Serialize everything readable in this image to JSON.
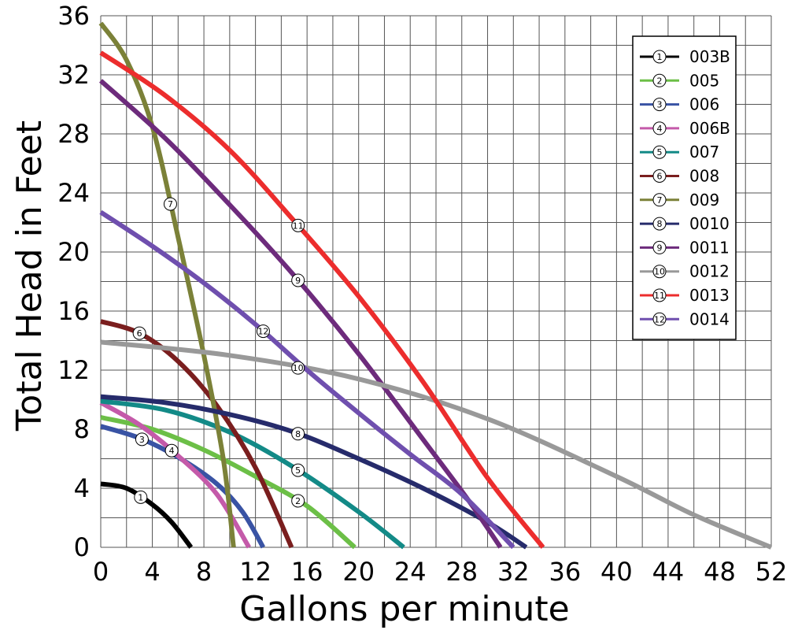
{
  "chart_data": {
    "type": "line",
    "title": "",
    "xlabel": "Gallons per minute",
    "ylabel": "Total Head in Feet",
    "xlim": [
      0,
      52
    ],
    "ylim": [
      0,
      36
    ],
    "x_ticks": [
      "0",
      "4",
      "8",
      "12",
      "16",
      "20",
      "24",
      "28",
      "32",
      "36",
      "40",
      "44",
      "48",
      "52"
    ],
    "y_ticks": [
      "0",
      "4",
      "8",
      "12",
      "16",
      "20",
      "24",
      "28",
      "32",
      "36"
    ],
    "grid": true,
    "legend_position": "top-right",
    "series": [
      {
        "id": "1",
        "name": "003B",
        "color": "#000000",
        "points": [
          [
            0,
            4.3
          ],
          [
            2,
            4.0
          ],
          [
            4,
            2.9
          ],
          [
            5.5,
            1.7
          ],
          [
            7,
            0
          ]
        ],
        "marker_x": 3.1
      },
      {
        "id": "2",
        "name": "005",
        "color": "#6cbf47",
        "points": [
          [
            0,
            8.8
          ],
          [
            4,
            8.0
          ],
          [
            8,
            6.6
          ],
          [
            12,
            4.8
          ],
          [
            16,
            2.8
          ],
          [
            19.7,
            0
          ]
        ],
        "marker_x": 15.3
      },
      {
        "id": "3",
        "name": "006",
        "color": "#3953a4",
        "points": [
          [
            0,
            8.2
          ],
          [
            3,
            7.4
          ],
          [
            6,
            6.1
          ],
          [
            9,
            4.3
          ],
          [
            11,
            2.4
          ],
          [
            12.6,
            0
          ]
        ],
        "marker_x": 3.2
      },
      {
        "id": "4",
        "name": "006B",
        "color": "#c45aa9",
        "points": [
          [
            0,
            9.8
          ],
          [
            3,
            8.3
          ],
          [
            6,
            6.2
          ],
          [
            9,
            3.6
          ],
          [
            11.5,
            0
          ]
        ],
        "marker_x": 5.5
      },
      {
        "id": "5",
        "name": "007",
        "color": "#138a87",
        "points": [
          [
            0,
            9.9
          ],
          [
            5,
            9.3
          ],
          [
            10,
            7.8
          ],
          [
            15,
            5.4
          ],
          [
            20,
            2.4
          ],
          [
            23.5,
            0
          ]
        ],
        "marker_x": 15.3
      },
      {
        "id": "6",
        "name": "008",
        "color": "#7a1e1e",
        "points": [
          [
            0,
            15.3
          ],
          [
            3,
            14.5
          ],
          [
            6,
            12.6
          ],
          [
            9,
            9.6
          ],
          [
            12,
            5.4
          ],
          [
            14.8,
            0
          ]
        ],
        "marker_x": 3.0
      },
      {
        "id": "7",
        "name": "009",
        "color": "#7b8138",
        "points": [
          [
            0,
            35.5
          ],
          [
            2,
            33.0
          ],
          [
            4,
            28.5
          ],
          [
            6,
            21.0
          ],
          [
            8,
            13.0
          ],
          [
            9.5,
            6.0
          ],
          [
            10.3,
            0
          ]
        ],
        "marker_x": 5.4
      },
      {
        "id": "8",
        "name": "0010",
        "color": "#262b6b",
        "points": [
          [
            0,
            10.2
          ],
          [
            5,
            9.8
          ],
          [
            10,
            9.0
          ],
          [
            15,
            7.8
          ],
          [
            20,
            6.0
          ],
          [
            25,
            4.0
          ],
          [
            30,
            1.7
          ],
          [
            33,
            0
          ]
        ],
        "marker_x": 15.3
      },
      {
        "id": "9",
        "name": "0011",
        "color": "#6d2b7c",
        "points": [
          [
            0,
            31.6
          ],
          [
            5,
            27.7
          ],
          [
            10,
            23.2
          ],
          [
            15,
            18.4
          ],
          [
            20,
            13.1
          ],
          [
            25,
            7.3
          ],
          [
            28.5,
            3.2
          ],
          [
            31,
            0
          ]
        ],
        "marker_x": 15.3
      },
      {
        "id": "10",
        "name": "0012",
        "color": "#999999",
        "points": [
          [
            0,
            13.9
          ],
          [
            10,
            13.0
          ],
          [
            20,
            11.4
          ],
          [
            30,
            8.7
          ],
          [
            40,
            4.8
          ],
          [
            46,
            2.2
          ],
          [
            52,
            0
          ]
        ],
        "marker_x": 15.3
      },
      {
        "id": "11",
        "name": "0013",
        "color": "#ec2d2d",
        "points": [
          [
            0,
            33.5
          ],
          [
            5,
            30.6
          ],
          [
            10,
            26.9
          ],
          [
            15,
            22.1
          ],
          [
            20,
            17.0
          ],
          [
            25,
            11.2
          ],
          [
            30,
            4.7
          ],
          [
            34.3,
            0
          ]
        ],
        "marker_x": 15.3
      },
      {
        "id": "12",
        "name": "0014",
        "color": "#6f4fae",
        "points": [
          [
            0,
            22.7
          ],
          [
            4,
            20.4
          ],
          [
            8,
            17.9
          ],
          [
            12,
            15.1
          ],
          [
            16,
            12.0
          ],
          [
            20,
            9.1
          ],
          [
            24,
            6.3
          ],
          [
            28,
            3.6
          ],
          [
            32,
            0
          ]
        ],
        "marker_x": 12.6
      }
    ]
  }
}
